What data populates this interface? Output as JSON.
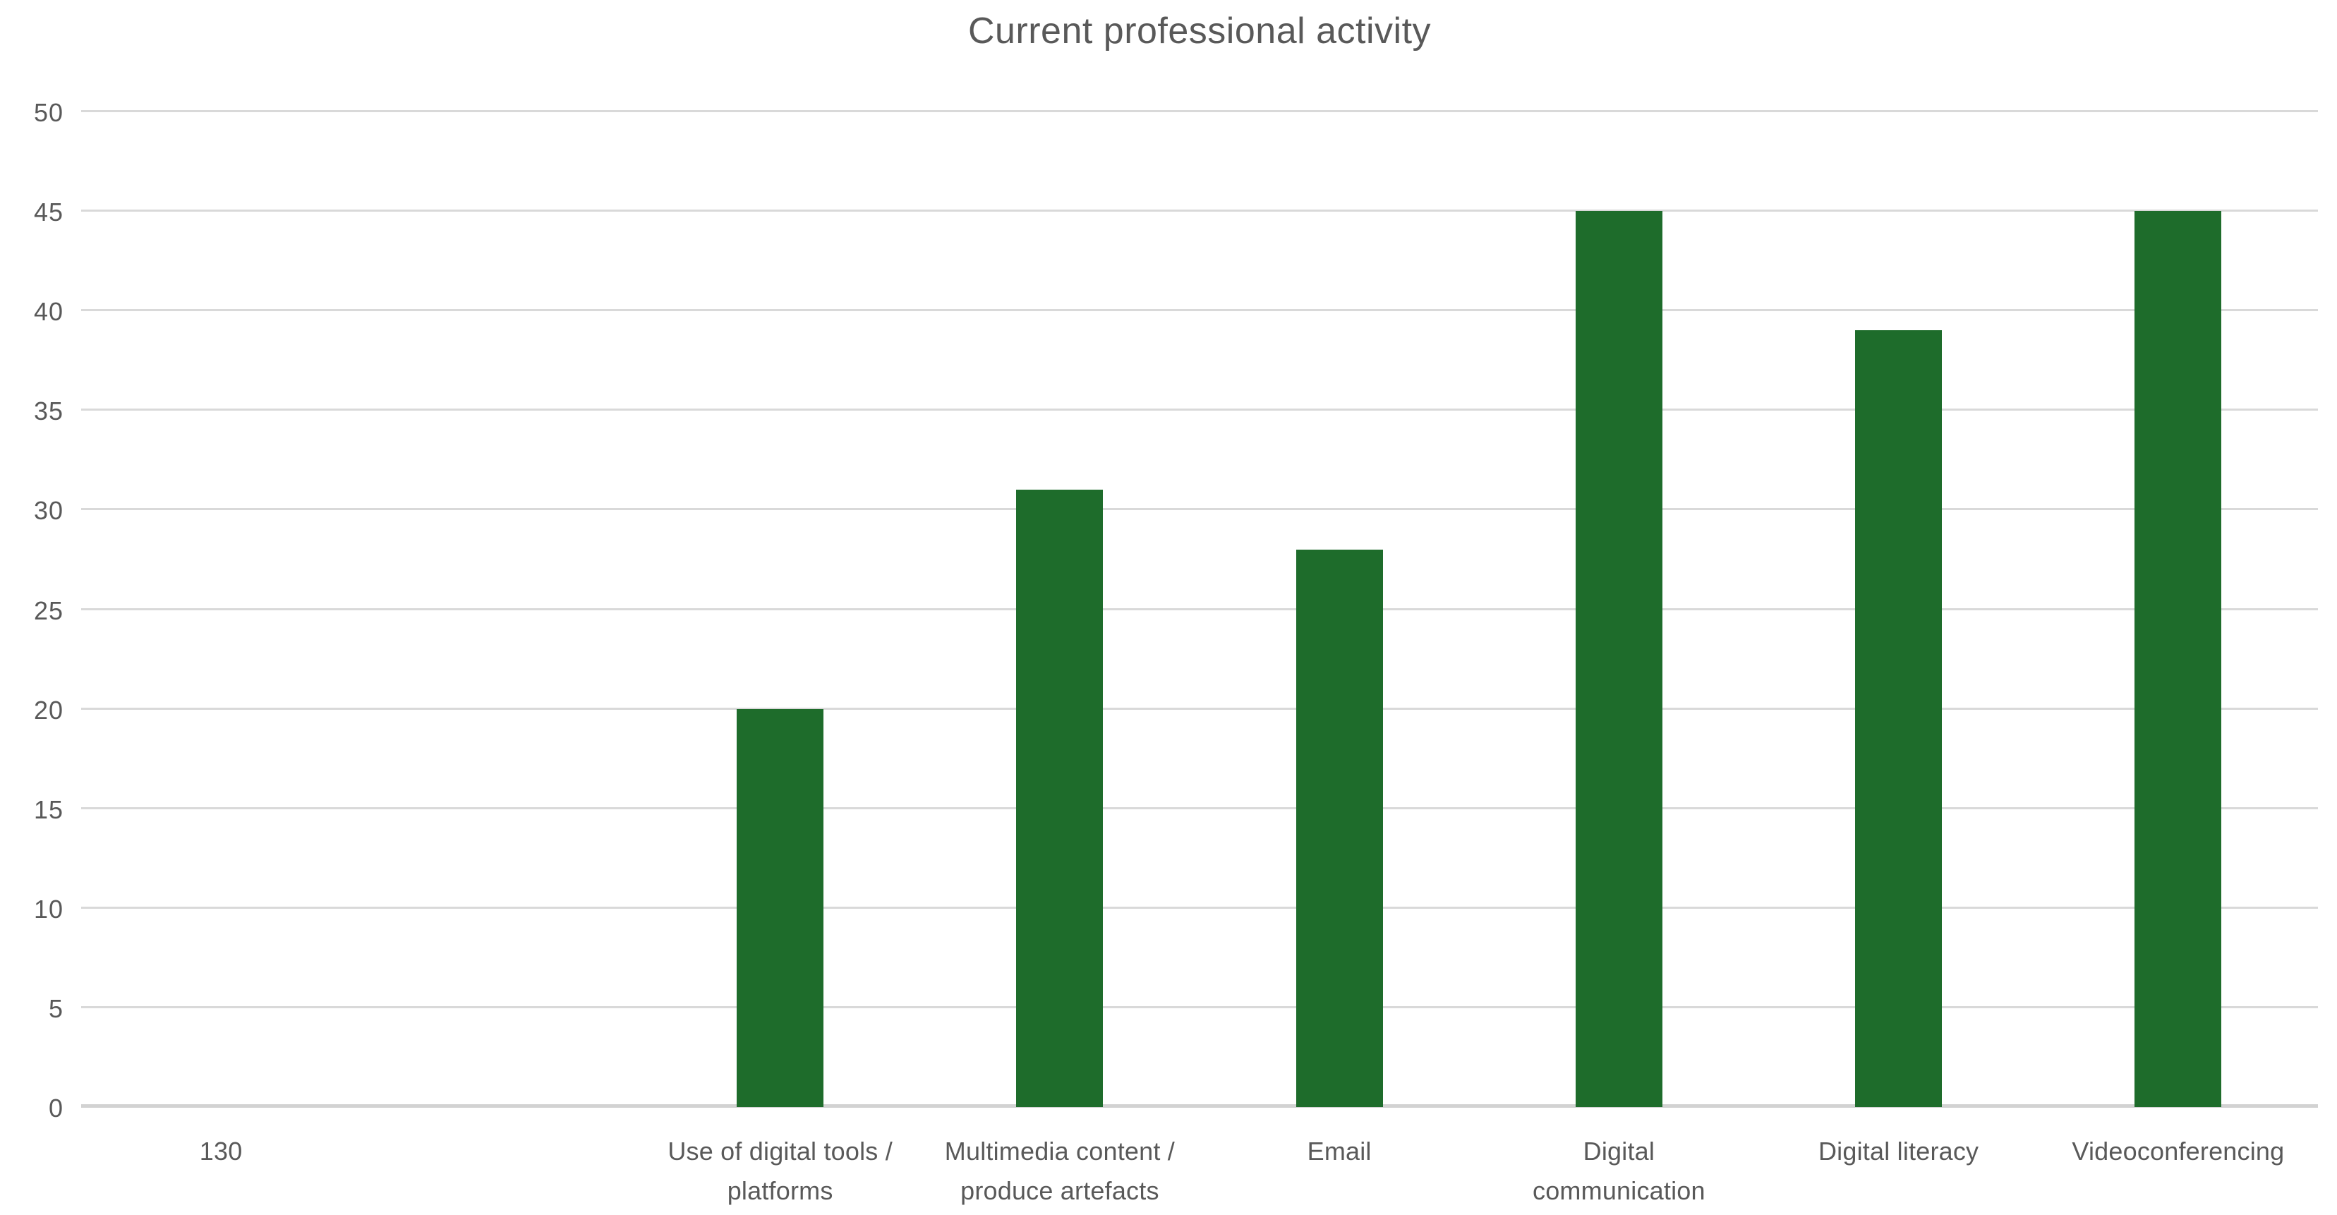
{
  "chart_data": {
    "type": "bar",
    "title": "Current professional activity",
    "categories": [
      "130",
      "",
      "Use of digital tools / platforms",
      "Multimedia content / produce artefacts",
      "Email",
      "Digital communication",
      "Digital literacy",
      "Videoconferencing"
    ],
    "values": [
      0,
      0,
      20,
      31,
      28,
      45,
      39,
      45
    ],
    "label_lines": [
      [
        "130"
      ],
      [
        ""
      ],
      [
        "Use of digital tools /",
        "platforms"
      ],
      [
        "Multimedia content /",
        "produce artefacts"
      ],
      [
        "Email"
      ],
      [
        "Digital",
        "communication"
      ],
      [
        "Digital literacy"
      ],
      [
        "Videoconferencing"
      ]
    ],
    "xlabel": "",
    "ylabel": "",
    "ylim": [
      0,
      50
    ],
    "yticks": [
      0,
      5,
      10,
      15,
      20,
      25,
      30,
      35,
      40,
      45,
      50
    ],
    "grid": true,
    "legend_position": "none",
    "bar_color": "#1E6C2B",
    "title_color": "#595959",
    "axis_label_color": "#595959",
    "gridline_color": "#D9D9D9",
    "baseline_color": "#D2D2D2",
    "background_color": "#FFFFFF"
  }
}
